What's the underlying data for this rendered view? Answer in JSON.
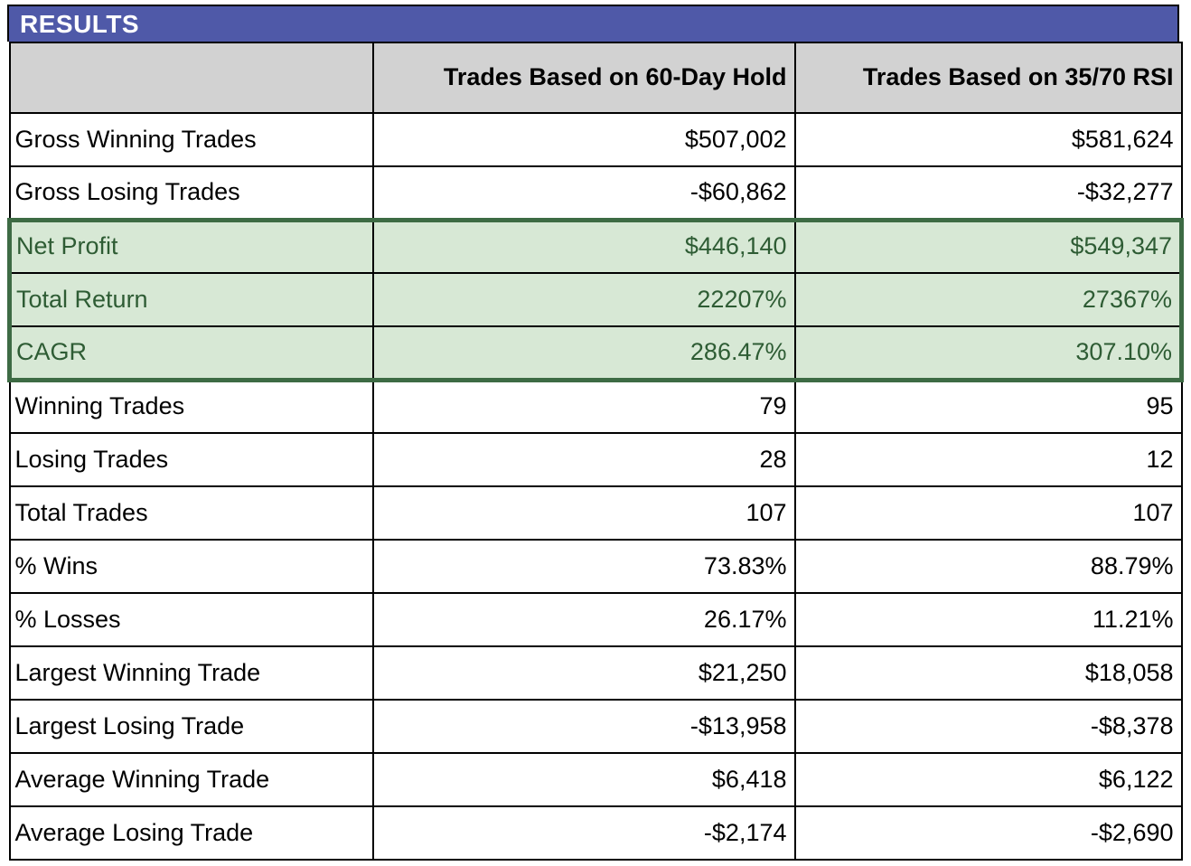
{
  "title": "RESULTS",
  "colors": {
    "title_bar_bg": "#4F59A8",
    "title_text": "#FFFFFF",
    "header_row_bg": "#D2D2D2",
    "highlight_bg": "#D7E8D5",
    "highlight_text": "#2E5C34",
    "highlight_border": "#3D6B44",
    "grid_border": "#000000"
  },
  "chart_data": {
    "type": "table",
    "title": "RESULTS",
    "columns": [
      "",
      "Trades Based on 60-Day Hold",
      "Trades Based on 35/70 RSI"
    ],
    "highlighted_rows": [
      "Net Profit",
      "Total Return",
      "CAGR"
    ],
    "rows": [
      {
        "label": "Gross Winning Trades",
        "values": [
          "$507,002",
          "$581,624"
        ],
        "highlight": false
      },
      {
        "label": "Gross Losing Trades",
        "values": [
          "-$60,862",
          "-$32,277"
        ],
        "highlight": false
      },
      {
        "label": "Net Profit",
        "values": [
          "$446,140",
          "$549,347"
        ],
        "highlight": true
      },
      {
        "label": "Total Return",
        "values": [
          "22207%",
          "27367%"
        ],
        "highlight": true
      },
      {
        "label": "CAGR",
        "values": [
          "286.47%",
          "307.10%"
        ],
        "highlight": true
      },
      {
        "label": "Winning Trades",
        "values": [
          "79",
          "95"
        ],
        "highlight": false
      },
      {
        "label": "Losing Trades",
        "values": [
          "28",
          "12"
        ],
        "highlight": false
      },
      {
        "label": "Total Trades",
        "values": [
          "107",
          "107"
        ],
        "highlight": false
      },
      {
        "label": "% Wins",
        "values": [
          "73.83%",
          "88.79%"
        ],
        "highlight": false
      },
      {
        "label": "% Losses",
        "values": [
          "26.17%",
          "11.21%"
        ],
        "highlight": false
      },
      {
        "label": "Largest Winning Trade",
        "values": [
          "$21,250",
          "$18,058"
        ],
        "highlight": false
      },
      {
        "label": "Largest Losing Trade",
        "values": [
          "-$13,958",
          "-$8,378"
        ],
        "highlight": false
      },
      {
        "label": "Average Winning Trade",
        "values": [
          "$6,418",
          "$6,122"
        ],
        "highlight": false
      },
      {
        "label": "Average Losing Trade",
        "values": [
          "-$2,174",
          "-$2,690"
        ],
        "highlight": false
      }
    ]
  }
}
